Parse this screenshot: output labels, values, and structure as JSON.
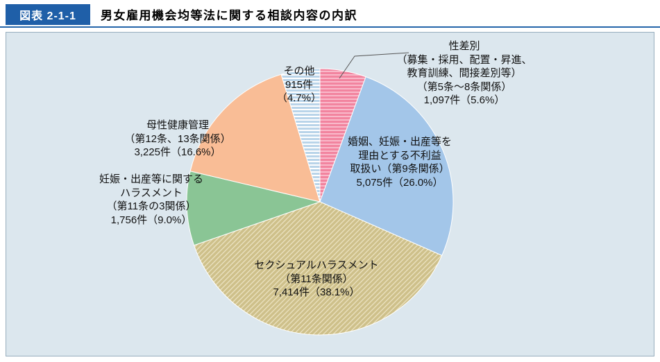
{
  "header": {
    "tag": "図表 2-1-1",
    "title": "男女雇用機会均等法に関する相談内容の内訳"
  },
  "chart_data": {
    "type": "pie",
    "title": "男女雇用機会均等法に関する相談内容の内訳",
    "start_angle_deg": 0,
    "direction": "clockwise",
    "total_percent": 100.0,
    "slices": [
      {
        "name": "性差別（募集・採用、配置・昇進、教育訓練、間接差別等）（第5条～8条関係）",
        "count": 1097,
        "count_label": "1,097件",
        "percent": 5.6,
        "color": "#f2849f",
        "pattern": "h-stripes",
        "stripe_color": "#f9b9ca"
      },
      {
        "name": "婚姻、妊娠・出産等を理由とする不利益取扱い（第9条関係）",
        "count": 5075,
        "count_label": "5,075件",
        "percent": 26.0,
        "color": "#a3c6e9",
        "pattern": "solid"
      },
      {
        "name": "セクシュアルハラスメント（第11条関係）",
        "count": 7414,
        "count_label": "7,414件",
        "percent": 38.1,
        "color": "#cec08a",
        "pattern": "diag-hatch",
        "stripe_color": "#ece3c2"
      },
      {
        "name": "妊娠・出産等に関するハラスメント（第11条の3関係）",
        "count": 1756,
        "count_label": "1,756件",
        "percent": 9.0,
        "color": "#8ac595",
        "pattern": "solid"
      },
      {
        "name": "母性健康管理（第12条、13条関係）",
        "count": 3225,
        "count_label": "3,225件",
        "percent": 16.6,
        "color": "#f9bd96",
        "pattern": "solid"
      },
      {
        "name": "その他",
        "count": 915,
        "count_label": "915件",
        "percent": 4.7,
        "color": "#b9d4e9",
        "pattern": "h-stripes",
        "stripe_color": "#ffffff"
      }
    ]
  },
  "callouts": {
    "seisabetsu": {
      "lines": [
        "性差別",
        "（募集・採用、配置・昇進、",
        "教育訓練、間接差別等）",
        "（第5条～8条関係）",
        "1,097件（5.6%）"
      ]
    },
    "konin": {
      "lines": [
        "婚姻、妊娠・出産等を",
        "理由とする不利益",
        "取扱い（第9条関係）",
        "5,075件（26.0%）"
      ]
    },
    "sekuhara": {
      "lines": [
        "セクシュアルハラスメント",
        "（第11条関係）",
        "7,414件（38.1%）"
      ]
    },
    "ninshin": {
      "lines": [
        "妊娠・出産等に関する",
        "ハラスメント",
        "（第11条の3関係）",
        "1,756件（9.0%）"
      ]
    },
    "bosei": {
      "lines": [
        "母性健康管理",
        "（第12条、13条関係）",
        "3,225件（16.6%）"
      ]
    },
    "sonota": {
      "lines": [
        "その他",
        "915件",
        "（4.7%）"
      ]
    }
  },
  "colors": {
    "header_tag_bg": "#1f5fa8",
    "header_rule": "#2465aa",
    "panel_bg": "#dce7ee",
    "panel_border": "#97adbd",
    "leader_line": "#555555"
  }
}
